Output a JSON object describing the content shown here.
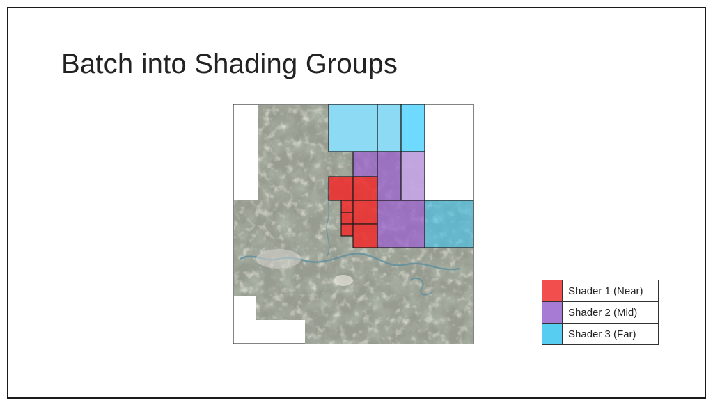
{
  "slide": {
    "title": "Batch into Shading Groups"
  },
  "colors": {
    "near": "#f03c3c",
    "mid": "#9b6fd0",
    "far": "#46c4ec",
    "terrain": "#8f968c"
  },
  "legend": {
    "items": [
      {
        "label": "Shader 1 (Near)",
        "color": "#f34e4e"
      },
      {
        "label": "Shader 2 (Mid)",
        "color": "#a77bd4"
      },
      {
        "label": "Shader 3 (Far)",
        "color": "#58cdf2"
      }
    ]
  }
}
